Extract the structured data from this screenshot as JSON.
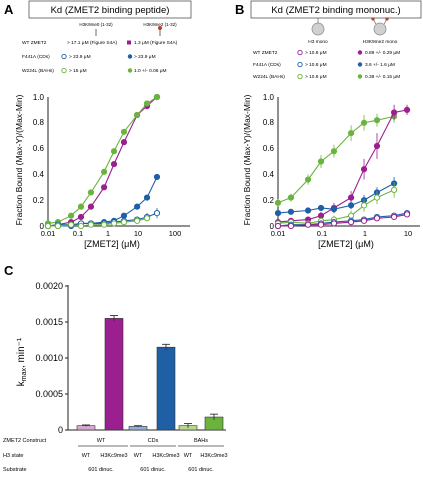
{
  "colors": {
    "axis": "#222222",
    "wt": "#f0f0f0",
    "purple": "#9b1f8f",
    "blue": "#1f5fa6",
    "green": "#6ab43e",
    "pink": "#d7a7d3",
    "lightblue": "#8fb1d8",
    "lightgreen": "#b7d98c",
    "error": "#333333"
  },
  "chart_data": [
    {
      "panel_letter": "A",
      "type": "scatter",
      "title": "Kd (ZMET2 binding peptide)",
      "xlabel": "[ZMET2] (μM)",
      "ylabel": "Fraction Bound (Max-Y)/(Max-Min)",
      "xscale": "log",
      "xlim": [
        0.01,
        200
      ],
      "ylim": [
        0,
        1.0
      ],
      "xticks": [
        "0.01",
        "0.1",
        "1",
        "10",
        "100"
      ],
      "yticks": [
        "0",
        "0.2",
        "0.4",
        "0.6",
        "0.8",
        "1.0"
      ],
      "header_peptides": [
        "H3K9me0 (1-32)",
        "H3K9me2 (1-32)"
      ],
      "legend_rows": [
        {
          "construct": "WT ZMET2",
          "unmod": "> 17.1 μM (Figure S4A)",
          "mod": "1.3 μM (Figure S4A)"
        },
        {
          "construct": "F441A (CDs)",
          "unmod": "> 23.9 μM",
          "mod": "> 23.9 μM"
        },
        {
          "construct": "W224L (BAHs)",
          "unmod": "> 15 μM",
          "mod": "1.0 +/- 0.06 μM"
        }
      ],
      "series": [
        {
          "color_key": "purple",
          "filled": true,
          "points": [
            [
              0.01,
              0.0
            ],
            [
              0.02,
              0.01
            ],
            [
              0.05,
              0.03
            ],
            [
              0.1,
              0.07
            ],
            [
              0.2,
              0.15
            ],
            [
              0.5,
              0.3
            ],
            [
              1,
              0.48
            ],
            [
              2,
              0.65
            ],
            [
              5,
              0.86
            ],
            [
              10,
              0.93
            ],
            [
              20,
              1.0
            ]
          ]
        },
        {
          "color_key": "green",
          "filled": true,
          "points": [
            [
              0.01,
              0.02
            ],
            [
              0.02,
              0.03
            ],
            [
              0.05,
              0.08
            ],
            [
              0.1,
              0.15
            ],
            [
              0.2,
              0.26
            ],
            [
              0.5,
              0.42
            ],
            [
              1,
              0.58
            ],
            [
              2,
              0.73
            ],
            [
              5,
              0.86
            ],
            [
              10,
              0.95
            ],
            [
              20,
              1.0
            ]
          ]
        },
        {
          "color_key": "blue",
          "filled": true,
          "points": [
            [
              0.02,
              0.0
            ],
            [
              0.05,
              0.0
            ],
            [
              0.1,
              0.02
            ],
            [
              0.2,
              0.02
            ],
            [
              0.5,
              0.03
            ],
            [
              1,
              0.04
            ],
            [
              2,
              0.08
            ],
            [
              5,
              0.15
            ],
            [
              10,
              0.22
            ],
            [
              20,
              0.38
            ]
          ]
        },
        {
          "color_key": "blue",
          "filled": false,
          "points": [
            [
              0.01,
              0.0
            ],
            [
              0.02,
              0.01
            ],
            [
              0.05,
              0.01
            ],
            [
              0.1,
              0.02
            ],
            [
              0.2,
              0.02
            ],
            [
              0.5,
              0.02
            ],
            [
              1,
              0.03
            ],
            [
              2,
              0.04
            ],
            [
              5,
              0.05
            ],
            [
              10,
              0.07
            ],
            [
              20,
              0.1
            ]
          ],
          "errors": [
            0.01,
            0.01,
            0.01,
            0.01,
            0.01,
            0.01,
            0.01,
            0.01,
            0.02,
            0.03,
            0.04
          ]
        },
        {
          "color_key": "green",
          "filled": false,
          "points": [
            [
              0.01,
              0.0
            ],
            [
              0.02,
              0.0
            ],
            [
              0.05,
              0.01
            ],
            [
              0.1,
              0.0
            ],
            [
              0.2,
              0.01
            ],
            [
              0.5,
              0.01
            ],
            [
              1,
              0.02
            ],
            [
              2,
              0.03
            ],
            [
              5,
              0.04
            ],
            [
              10,
              0.06
            ]
          ]
        }
      ]
    },
    {
      "panel_letter": "B",
      "type": "scatter",
      "title": "Kd (ZMET2 binding mononuc.)",
      "xlabel": "[ZMET2] (μM)",
      "ylabel": "Fraction Bound (Max-Y)/(Max-Min)",
      "xscale": "log",
      "xlim": [
        0.01,
        20
      ],
      "ylim": [
        0,
        1.0
      ],
      "xticks": [
        "0.01",
        "0.1",
        "1",
        "10"
      ],
      "yticks": [
        "0",
        "0.2",
        "0.4",
        "0.6",
        "0.8",
        "1.0"
      ],
      "header_nucs": [
        "H3 mono",
        "H3K9me2 mono"
      ],
      "legend_rows": [
        {
          "construct": "WT ZMET2",
          "unmod": "> 10.8 μM",
          "mod": "0.89 +/- 0.29 μM"
        },
        {
          "construct": "F441A (CDs)",
          "unmod": "> 10.8 μM",
          "mod": "3.6 +/- 1.6 μM"
        },
        {
          "construct": "W224L (BAHs)",
          "unmod": "> 10.8 μM",
          "mod": "0.38 +/- 0.15 μM"
        }
      ],
      "series": [
        {
          "color_key": "green",
          "filled": true,
          "points": [
            [
              0.01,
              0.18
            ],
            [
              0.02,
              0.22
            ],
            [
              0.05,
              0.36
            ],
            [
              0.1,
              0.5
            ],
            [
              0.2,
              0.58
            ],
            [
              0.5,
              0.72
            ],
            [
              1,
              0.8
            ],
            [
              2,
              0.82
            ],
            [
              5,
              0.85
            ]
          ],
          "errors": [
            0.03,
            0.03,
            0.04,
            0.05,
            0.05,
            0.06,
            0.06,
            0.05,
            0.05
          ]
        },
        {
          "color_key": "purple",
          "filled": true,
          "points": [
            [
              0.01,
              0.03
            ],
            [
              0.02,
              0.04
            ],
            [
              0.05,
              0.05
            ],
            [
              0.1,
              0.08
            ],
            [
              0.2,
              0.14
            ],
            [
              0.5,
              0.22
            ],
            [
              1,
              0.44
            ],
            [
              2,
              0.62
            ],
            [
              5,
              0.88
            ],
            [
              10,
              0.9
            ]
          ],
          "errors": [
            0.02,
            0.02,
            0.02,
            0.03,
            0.04,
            0.05,
            0.08,
            0.1,
            0.06,
            0.04
          ]
        },
        {
          "color_key": "blue",
          "filled": true,
          "points": [
            [
              0.01,
              0.1
            ],
            [
              0.02,
              0.11
            ],
            [
              0.05,
              0.12
            ],
            [
              0.1,
              0.14
            ],
            [
              0.2,
              0.13
            ],
            [
              0.5,
              0.16
            ],
            [
              1,
              0.2
            ],
            [
              2,
              0.26
            ],
            [
              5,
              0.33
            ]
          ],
          "errors": [
            0.02,
            0.02,
            0.02,
            0.02,
            0.03,
            0.03,
            0.04,
            0.04,
            0.05
          ]
        },
        {
          "color_key": "green",
          "filled": false,
          "points": [
            [
              0.01,
              0.02
            ],
            [
              0.02,
              0.03
            ],
            [
              0.05,
              0.02
            ],
            [
              0.1,
              0.04
            ],
            [
              0.2,
              0.05
            ],
            [
              0.5,
              0.08
            ],
            [
              1,
              0.16
            ],
            [
              2,
              0.22
            ],
            [
              5,
              0.28
            ]
          ],
          "errors": [
            0.02,
            0.02,
            0.02,
            0.02,
            0.03,
            0.04,
            0.05,
            0.05,
            0.06
          ]
        },
        {
          "color_key": "blue",
          "filled": false,
          "points": [
            [
              0.01,
              0.0
            ],
            [
              0.02,
              0.01
            ],
            [
              0.05,
              0.01
            ],
            [
              0.1,
              0.02
            ],
            [
              0.2,
              0.03
            ],
            [
              0.5,
              0.04
            ],
            [
              1,
              0.05
            ],
            [
              2,
              0.07
            ],
            [
              5,
              0.08
            ],
            [
              10,
              0.1
            ]
          ]
        },
        {
          "color_key": "purple",
          "filled": false,
          "points": [
            [
              0.01,
              0.0
            ],
            [
              0.02,
              0.0
            ],
            [
              0.05,
              0.01
            ],
            [
              0.1,
              0.01
            ],
            [
              0.2,
              0.02
            ],
            [
              0.5,
              0.03
            ],
            [
              1,
              0.04
            ],
            [
              2,
              0.06
            ],
            [
              5,
              0.07
            ],
            [
              10,
              0.09
            ]
          ]
        }
      ]
    },
    {
      "panel_letter": "C",
      "type": "bar",
      "ylabel": "kmax, min⁻¹",
      "ylabel_main": "k",
      "ylabel_sub": "max",
      "ylabel_unit": ", min⁻¹",
      "ylim": [
        0,
        0.002
      ],
      "yticks": [
        "0",
        "0.0005",
        "0.0010",
        "0.0015",
        "0.0020"
      ],
      "bars": [
        {
          "construct": "WT",
          "h3_state": "WT",
          "value": 6e-05,
          "error": 1e-05,
          "color_key": "pink"
        },
        {
          "construct": "WT",
          "h3_state": "H3Kc9me3",
          "value": 0.00155,
          "error": 4e-05,
          "color_key": "purple"
        },
        {
          "construct": "CDs",
          "h3_state": "WT",
          "value": 5e-05,
          "error": 1e-05,
          "color_key": "lightblue"
        },
        {
          "construct": "CDs",
          "h3_state": "H3Kc9me3",
          "value": 0.00115,
          "error": 4e-05,
          "color_key": "blue"
        },
        {
          "construct": "BAHs",
          "h3_state": "WT",
          "value": 6e-05,
          "error": 3e-05,
          "color_key": "lightgreen"
        },
        {
          "construct": "BAHs",
          "h3_state": "H3Kc9me3",
          "value": 0.00018,
          "error": 4e-05,
          "color_key": "green"
        }
      ],
      "row_labels": [
        "ZMET2 Construct",
        "H3 state",
        "Substrate"
      ],
      "construct_labels": [
        "WT",
        "CDs",
        "BAHs"
      ],
      "h3_labels": [
        "WT",
        "H3Kc9me3",
        "WT",
        "H3Kc9me3",
        "WT",
        "H3Kc9me3"
      ],
      "substrate_labels": [
        "601 dinuc.",
        "601 dinuc.",
        "601 dinuc."
      ]
    }
  ]
}
